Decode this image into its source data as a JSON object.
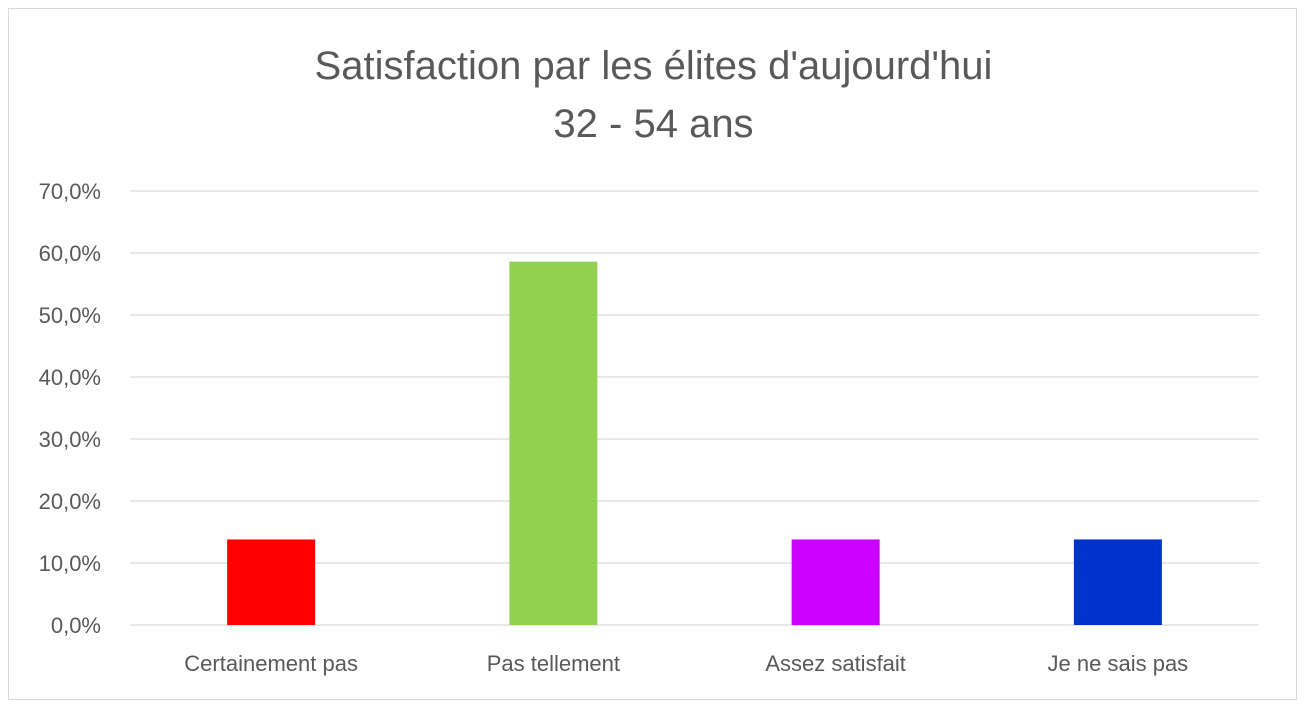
{
  "chart_data": {
    "type": "bar",
    "title": [
      "Satisfaction par les élites d'aujourd'hui",
      "32 - 54 ans"
    ],
    "categories": [
      "Certainement pas",
      "Pas tellement",
      "Assez satisfait",
      "Je ne sais pas"
    ],
    "values": [
      13.8,
      58.6,
      13.8,
      13.8
    ],
    "colors": [
      "#ff0000",
      "#92d050",
      "#cc00ff",
      "#0033cc"
    ],
    "xlabel": "",
    "ylabel": "",
    "ylim": [
      0,
      70
    ],
    "yticks": [
      "0,0%",
      "10,0%",
      "20,0%",
      "30,0%",
      "40,0%",
      "50,0%",
      "60,0%",
      "70,0%"
    ],
    "grid": true,
    "legend": "none"
  }
}
